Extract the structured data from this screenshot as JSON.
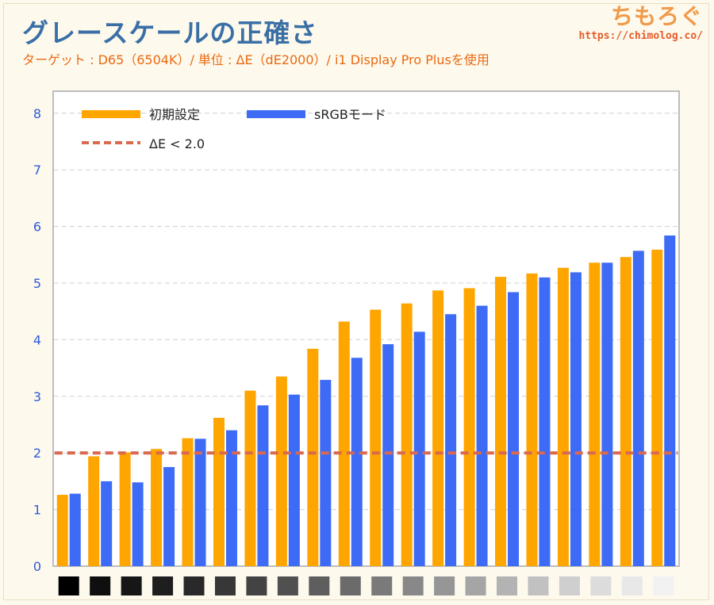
{
  "title": "グレースケールの正確さ",
  "subtitle": "ターゲット : D65（6504K）/ 単位 : ΔE（dE2000）/ i1 Display Pro Plusを使用",
  "logo": {
    "name": "ちもろぐ",
    "url": "https://chimolog.co/"
  },
  "chart_data": {
    "type": "bar",
    "series": [
      {
        "name": "初期設定",
        "color": "#ffa500",
        "values": [
          1.26,
          1.94,
          2.01,
          2.07,
          2.26,
          2.62,
          3.1,
          3.35,
          3.84,
          4.32,
          4.53,
          4.64,
          4.87,
          4.91,
          5.11,
          5.17,
          5.27,
          5.36,
          5.46,
          5.59
        ]
      },
      {
        "name": "sRGBモード",
        "color": "#3d6bf5",
        "values": [
          1.28,
          1.5,
          1.48,
          1.75,
          2.25,
          2.4,
          2.84,
          3.03,
          3.29,
          3.68,
          3.92,
          4.14,
          4.45,
          4.6,
          4.84,
          5.1,
          5.19,
          5.36,
          5.57,
          5.84
        ]
      }
    ],
    "threshold": {
      "label": "ΔE < 2.0",
      "value": 2.0,
      "color": "#d9694f",
      "style": "dashed"
    },
    "yticks": [
      "0",
      "1",
      "2",
      "3",
      "4",
      "5",
      "6",
      "7",
      "8"
    ],
    "ylim": [
      0,
      8
    ],
    "grid": "horizontal dashed",
    "legend_position": "top-left inside",
    "category_swatches": [
      "#000000",
      "#0f0f0f",
      "#161616",
      "#1e1e1e",
      "#292929",
      "#373737",
      "#434343",
      "#505050",
      "#5e5e5e",
      "#6b6b6b",
      "#7a7a7a",
      "#888888",
      "#969696",
      "#a5a5a5",
      "#b3b3b3",
      "#c1c1c1",
      "#cfcfcf",
      "#dcdcdc",
      "#e8e8e8",
      "#f2f2f2"
    ]
  }
}
